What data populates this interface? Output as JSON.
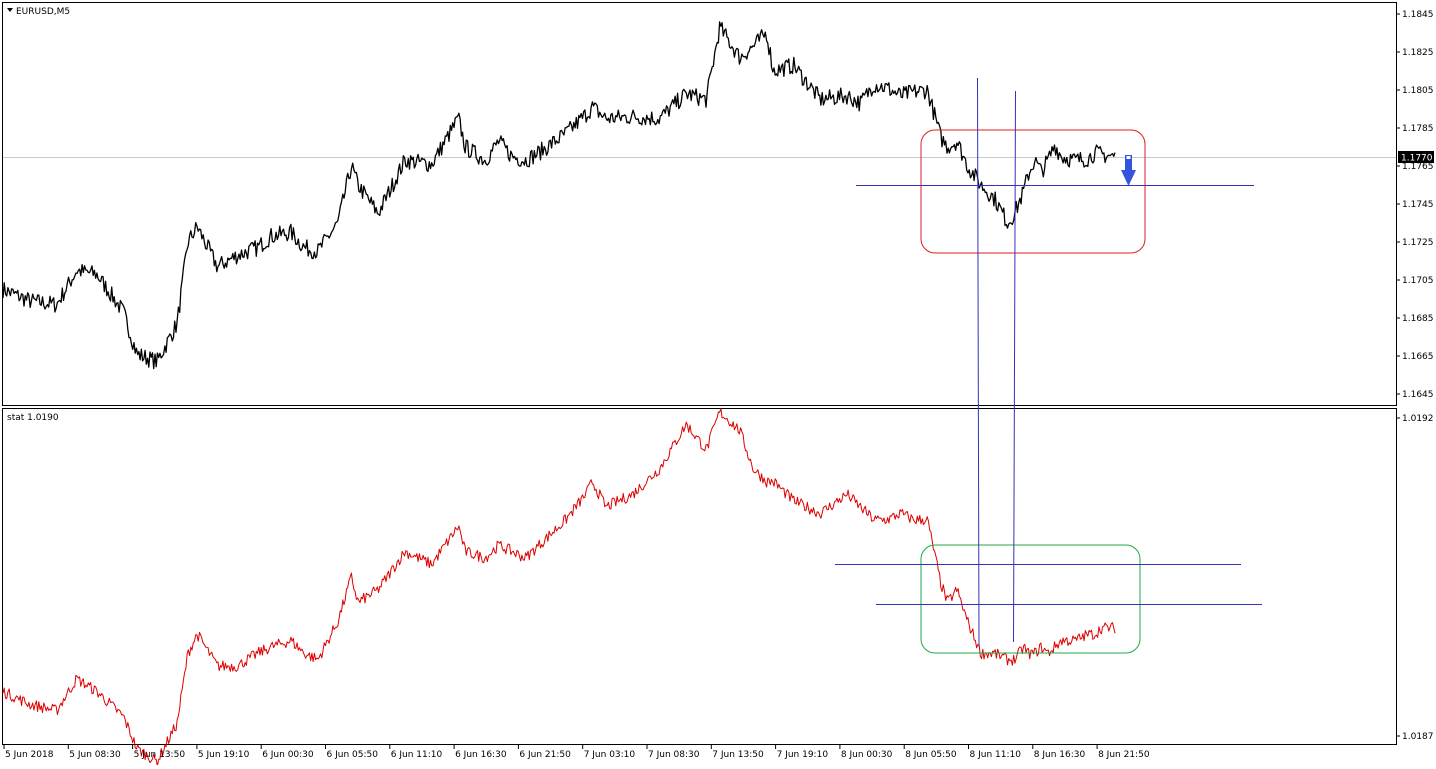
{
  "chart_data": [
    {
      "type": "line",
      "label": "EURUSD,M5",
      "ylim": [
        1.1635,
        1.1855
      ],
      "y_ticks": [
        "1.1845",
        "1.1825",
        "1.1805",
        "1.1785",
        "1.1765",
        "1.1745",
        "1.1725",
        "1.1705",
        "1.1685",
        "1.1665",
        "1.1645"
      ],
      "current_price": "1.1770",
      "series": [
        {
          "color": "#000000",
          "x": [
            0,
            0.02,
            0.04,
            0.055,
            0.07,
            0.09,
            0.1,
            0.115,
            0.13,
            0.138,
            0.145,
            0.16,
            0.175,
            0.19,
            0.2,
            0.215,
            0.225,
            0.235,
            0.25,
            0.26,
            0.265,
            0.28,
            0.3,
            0.32,
            0.34,
            0.345,
            0.36,
            0.37,
            0.38,
            0.39,
            0.4,
            0.42,
            0.435,
            0.44,
            0.45,
            0.47,
            0.49,
            0.51,
            0.525,
            0.535,
            0.55,
            0.56,
            0.57,
            0.575,
            0.59,
            0.61,
            0.63,
            0.64,
            0.65,
            0.66,
            0.67,
            0.68,
            0.69,
            0.7,
            0.705,
            0.712,
            0.72,
            0.73,
            0.74,
            0.75,
            0.755,
            0.762,
            0.765,
            0.77,
            0.775,
            0.78,
            0.785,
            0.79,
            0.8,
            0.81,
            0.815,
            0.82,
            0.83
          ],
          "y": [
            1.17,
            1.1694,
            1.1692,
            1.171,
            1.1708,
            1.1688,
            1.1666,
            1.1662,
            1.1682,
            1.1725,
            1.1733,
            1.1712,
            1.1718,
            1.1722,
            1.1728,
            1.173,
            1.1722,
            1.172,
            1.1735,
            1.1765,
            1.1755,
            1.174,
            1.1768,
            1.1766,
            1.179,
            1.1775,
            1.1768,
            1.1778,
            1.177,
            1.1768,
            1.1772,
            1.1782,
            1.1792,
            1.1796,
            1.179,
            1.1791,
            1.179,
            1.1803,
            1.18,
            1.1838,
            1.1822,
            1.1828,
            1.1835,
            1.1815,
            1.1818,
            1.18,
            1.1802,
            1.1798,
            1.1808,
            1.1806,
            1.1802,
            1.1804,
            1.1805,
            1.178,
            1.1775,
            1.1778,
            1.1765,
            1.1755,
            1.1748,
            1.1735,
            1.174,
            1.1752,
            1.176,
            1.1768,
            1.1762,
            1.1768,
            1.1776,
            1.177,
            1.1768,
            1.1769,
            1.1772,
            1.1771,
            1.177
          ]
        }
      ]
    },
    {
      "type": "line",
      "label": "stat 1.0190",
      "ylim": [
        1.0187,
        1.0192
      ],
      "y_ticks": [
        "1.0192",
        "1.0187"
      ],
      "series": [
        {
          "color": "#dd0000",
          "x": [
            0,
            0.02,
            0.04,
            0.055,
            0.07,
            0.09,
            0.1,
            0.115,
            0.13,
            0.138,
            0.145,
            0.16,
            0.175,
            0.19,
            0.2,
            0.215,
            0.225,
            0.235,
            0.25,
            0.26,
            0.265,
            0.28,
            0.3,
            0.32,
            0.34,
            0.345,
            0.36,
            0.37,
            0.38,
            0.39,
            0.4,
            0.42,
            0.435,
            0.44,
            0.45,
            0.47,
            0.49,
            0.51,
            0.525,
            0.535,
            0.55,
            0.56,
            0.57,
            0.575,
            0.59,
            0.61,
            0.63,
            0.64,
            0.65,
            0.66,
            0.67,
            0.68,
            0.69,
            0.7,
            0.705,
            0.712,
            0.72,
            0.73,
            0.74,
            0.75,
            0.755,
            0.762,
            0.765,
            0.77,
            0.775,
            0.78,
            0.785,
            0.79,
            0.8,
            0.81,
            0.815,
            0.82,
            0.83
          ],
          "y": [
            1.01877,
            1.01875,
            1.01874,
            1.01879,
            1.01877,
            1.01873,
            1.01868,
            1.01866,
            1.01872,
            1.01883,
            1.01886,
            1.01881,
            1.01881,
            1.01883,
            1.01884,
            1.01885,
            1.01883,
            1.01882,
            1.01888,
            1.01895,
            1.01891,
            1.01893,
            1.01899,
            1.01897,
            1.01903,
            1.01899,
            1.01898,
            1.019,
            1.01899,
            1.01898,
            1.019,
            1.01904,
            1.01908,
            1.0191,
            1.01906,
            1.01908,
            1.01912,
            1.01919,
            1.01915,
            1.01921,
            1.01918,
            1.01912,
            1.0191,
            1.0191,
            1.01907,
            1.01905,
            1.01908,
            1.01906,
            1.01904,
            1.01904,
            1.01905,
            1.01904,
            1.01904,
            1.01894,
            1.01891,
            1.01893,
            1.01888,
            1.01883,
            1.01883,
            1.01882,
            1.01882,
            1.01884,
            1.01883,
            1.01883,
            1.01884,
            1.01883,
            1.01884,
            1.01885,
            1.01885,
            1.01886,
            1.01886,
            1.01887,
            1.01887
          ]
        }
      ]
    }
  ],
  "x_tick_labels": [
    "5 Jun 2018",
    "5 Jun 08:30",
    "5 Jun 13:50",
    "5 Jun 19:10",
    "6 Jun 00:30",
    "6 Jun 05:50",
    "6 Jun 11:10",
    "6 Jun 16:30",
    "6 Jun 21:50",
    "7 Jun 03:10",
    "7 Jun 08:30",
    "7 Jun 13:50",
    "7 Jun 19:10",
    "8 Jun 00:30",
    "8 Jun 05:50",
    "8 Jun 11:10",
    "8 Jun 16:30",
    "8 Jun 21:50"
  ],
  "annotation_colors": {
    "line": "#3333bb",
    "red_box": "#dd2222",
    "green_box": "#22aa44",
    "arrow": "#3355dd"
  }
}
